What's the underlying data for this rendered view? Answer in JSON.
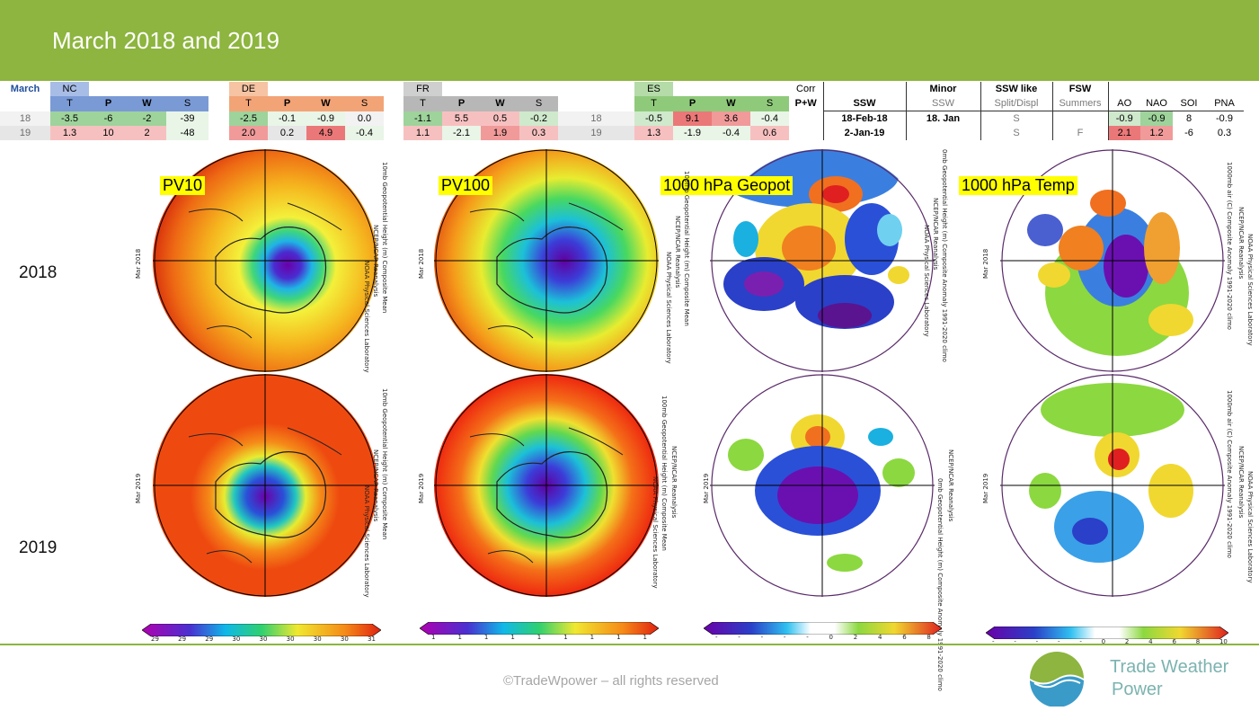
{
  "page": {
    "title": "March 2018 and 2019"
  },
  "table": {
    "month_label": "March",
    "corr_label": "Corr",
    "pw_label": "P+W",
    "regions": [
      "NC",
      "DE",
      "FR",
      "ES"
    ],
    "cols": [
      "T",
      "P",
      "W",
      "S"
    ],
    "rows": [
      {
        "year": "18",
        "nc": [
          "-3.5",
          "-6",
          "-2",
          "-39"
        ],
        "de": [
          "-2.5",
          "-0.1",
          "-0.9",
          "0.0"
        ],
        "fr": [
          "-1.1",
          "5.5",
          "0.5",
          "-0.2"
        ],
        "es": [
          "-0.5",
          "9.1",
          "3.6",
          "-0.4"
        ]
      },
      {
        "year": "19",
        "nc": [
          "1.3",
          "10",
          "2",
          "-48"
        ],
        "de": [
          "2.0",
          "0.2",
          "4.9",
          "-0.4"
        ],
        "fr": [
          "1.1",
          "-2.1",
          "1.9",
          "0.3"
        ],
        "es": [
          "1.3",
          "-1.9",
          "-0.4",
          "0.6"
        ]
      }
    ],
    "ssw": {
      "headers": [
        "SSW",
        "Minor",
        "SSW like",
        "FSW"
      ],
      "subheaders": [
        "SSW",
        "Split/Displ",
        "Summers"
      ],
      "rows": [
        {
          "ssw": "18-Feb-18",
          "minor": "18. Jan",
          "like": "S",
          "fsw": ""
        },
        {
          "ssw": "2-Jan-19",
          "minor": "",
          "like": "S",
          "fsw": "F"
        }
      ]
    },
    "indices": {
      "headers": [
        "AO",
        "NAO",
        "SOI",
        "PNA"
      ],
      "rows": [
        [
          "-0.9",
          "-0.9",
          "8",
          "-0.9"
        ],
        [
          "2.1",
          "1.2",
          "-6",
          "0.3"
        ]
      ]
    }
  },
  "maps": {
    "labels": [
      "PV10",
      "PV100",
      "1000 hPa Geopot",
      "1000 hPa Temp"
    ],
    "row_labels": [
      "2018",
      "2019"
    ],
    "side_titles": {
      "pv10": "10mb Geopotential Height (m) Composite Mean",
      "pv100": "100mb Geopotential Height (m) Composite Mean",
      "geopot": "0mb Geopotential Height (m) Composite Anomaly 1991-2020 climo",
      "temp": "1000mb air (C) Composite Anomaly 1991-2020 climo"
    },
    "source": "NCEP/NCAR Reanalysis",
    "lab": "NOAA Physical Sciences Laboratory",
    "dates": [
      "Mar 2018",
      "Mar 2019"
    ]
  },
  "colorbars": {
    "pv10_ticks": [
      "29",
      "29",
      "29",
      "30",
      "30",
      "30",
      "30",
      "30",
      "31"
    ],
    "pv100_ticks": [
      "1",
      "1",
      "1",
      "1",
      "1",
      "1",
      "1",
      "1",
      "1"
    ],
    "geopot_ticks": [
      "-",
      "-",
      "-",
      "-",
      "-",
      "0",
      "2",
      "4",
      "6",
      "8"
    ],
    "temp_ticks": [
      "-",
      "-",
      "-",
      "-",
      "-",
      "0",
      "2",
      "4",
      "6",
      "8",
      "10"
    ]
  },
  "footer": {
    "copyright": "©TradeWpower – all rights reserved",
    "brand_line1": "Trade Weather",
    "brand_line2": "Power"
  },
  "colors": {
    "banner": "#8db53f",
    "brand": "#7bb3b0"
  }
}
